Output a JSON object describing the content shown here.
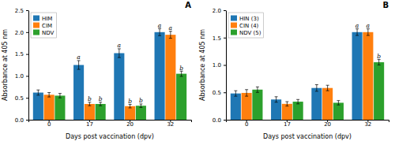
{
  "chart_data": [
    {
      "type": "bar",
      "title": "A",
      "x_label": "Days post vaccination (dpv)",
      "y_label": "Absorbance at 405 nm",
      "categories": [
        "0",
        "17",
        "20",
        "32"
      ],
      "series": [
        {
          "name": "HIM",
          "values": [
            0.62,
            1.25,
            1.52,
            2.0
          ],
          "errors": [
            0.06,
            0.1,
            0.1,
            0.08
          ],
          "annotations": [
            null,
            "a",
            "a",
            "a"
          ]
        },
        {
          "name": "CIM",
          "values": [
            0.57,
            0.36,
            0.31,
            1.94
          ],
          "errors": [
            0.05,
            0.04,
            0.04,
            0.08
          ],
          "annotations": [
            null,
            "b",
            "b",
            "a"
          ]
        },
        {
          "name": "NDV",
          "values": [
            0.55,
            0.36,
            0.32,
            1.05
          ],
          "errors": [
            0.05,
            0.04,
            0.04,
            0.06
          ],
          "annotations": [
            null,
            "b",
            "b",
            "b"
          ]
        }
      ],
      "ylim": [
        0.0,
        2.5
      ],
      "yticks": [
        {
          "value": 0.0,
          "label": "0.0"
        },
        0.5,
        {
          "value": 1.0,
          "label": "1.0"
        },
        1.5,
        {
          "value": 2.0,
          "label": "2.0"
        },
        2.5
      ],
      "legend": "upper left",
      "grid": false
    },
    {
      "type": "bar",
      "title": "B",
      "x_label": "Days post vaccination (dpv)",
      "y_label": "Absorbance at 405 nm",
      "categories": [
        "0",
        "17",
        "20",
        "32"
      ],
      "series": [
        {
          "name": "HIN (3)",
          "values": [
            0.48,
            0.37,
            0.58,
            1.6
          ],
          "errors": [
            0.05,
            0.05,
            0.06,
            0.06
          ],
          "annotations": [
            null,
            null,
            null,
            "a"
          ]
        },
        {
          "name": "CIN (4)",
          "values": [
            0.49,
            0.29,
            0.58,
            1.6
          ],
          "errors": [
            0.06,
            0.04,
            0.05,
            0.06
          ],
          "annotations": [
            null,
            null,
            null,
            "a"
          ]
        },
        {
          "name": "NDV (5)",
          "values": [
            0.55,
            0.33,
            0.31,
            1.05
          ],
          "errors": [
            0.05,
            0.04,
            0.04,
            0.05
          ],
          "annotations": [
            null,
            null,
            null,
            "b"
          ]
        }
      ],
      "ylim": [
        0.0,
        2.0
      ],
      "yticks": [
        {
          "value": 0.0,
          "label": "0.0"
        },
        0.5,
        {
          "value": 1.0,
          "label": "1.0"
        },
        1.5,
        {
          "value": 2.0,
          "label": "2.0"
        }
      ],
      "legend": "upper left",
      "grid": false
    }
  ]
}
